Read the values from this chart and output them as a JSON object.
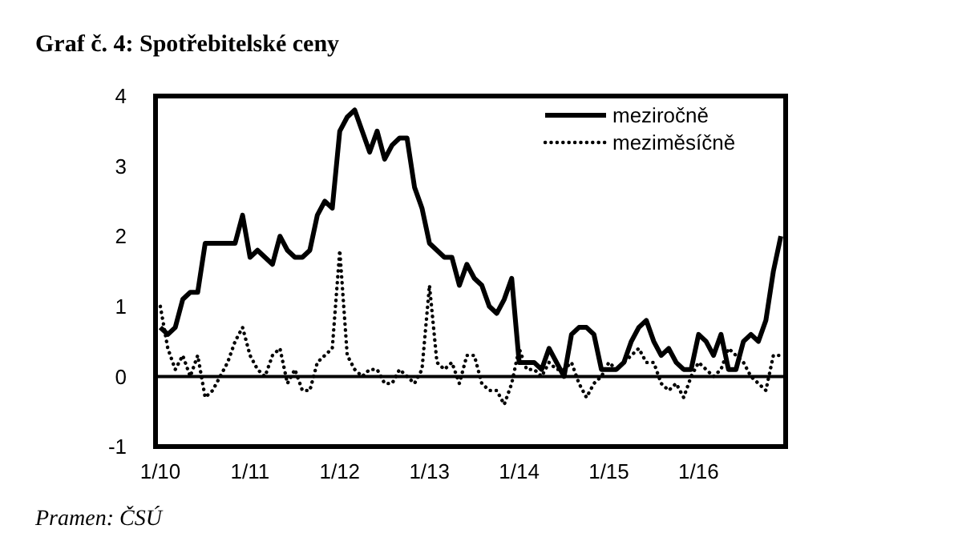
{
  "chart_data": {
    "type": "line",
    "title": "Graf č. 4: Spotřebitelské ceny",
    "annotations": [
      "Pramen: ČSÚ"
    ],
    "categories": [
      "1/10",
      null,
      null,
      null,
      null,
      null,
      null,
      null,
      null,
      null,
      null,
      null,
      "1/11",
      null,
      null,
      null,
      null,
      null,
      null,
      null,
      null,
      null,
      null,
      null,
      "1/12",
      null,
      null,
      null,
      null,
      null,
      null,
      null,
      null,
      null,
      null,
      null,
      "1/13",
      null,
      null,
      null,
      null,
      null,
      null,
      null,
      null,
      null,
      null,
      null,
      "1/14",
      null,
      null,
      null,
      null,
      null,
      null,
      null,
      null,
      null,
      null,
      null,
      "1/15",
      null,
      null,
      null,
      null,
      null,
      null,
      null,
      null,
      null,
      null,
      null,
      "1/16",
      null,
      null,
      null,
      null,
      null,
      null,
      null,
      null,
      null,
      null,
      null
    ],
    "series": [
      {
        "name": "meziročně",
        "color": "#000000",
        "line_style": "solid",
        "values": [
          0.7,
          0.6,
          0.7,
          1.1,
          1.2,
          1.2,
          1.9,
          1.9,
          1.9,
          1.9,
          1.9,
          2.3,
          1.7,
          1.8,
          1.7,
          1.6,
          2.0,
          1.8,
          1.7,
          1.7,
          1.8,
          2.3,
          2.5,
          2.4,
          3.5,
          3.7,
          3.8,
          3.5,
          3.2,
          3.5,
          3.1,
          3.3,
          3.4,
          3.4,
          2.7,
          2.4,
          1.9,
          1.8,
          1.7,
          1.7,
          1.3,
          1.6,
          1.4,
          1.3,
          1.0,
          0.9,
          1.1,
          1.4,
          0.2,
          0.2,
          0.2,
          0.1,
          0.4,
          0.2,
          0.0,
          0.6,
          0.7,
          0.7,
          0.6,
          0.1,
          0.1,
          0.1,
          0.2,
          0.5,
          0.7,
          0.8,
          0.5,
          0.3,
          0.4,
          0.2,
          0.1,
          0.1,
          0.6,
          0.5,
          0.3,
          0.6,
          0.1,
          0.1,
          0.5,
          0.6,
          0.5,
          0.8,
          1.5,
          2.0
        ]
      },
      {
        "name": "meziměsíčně",
        "color": "#000000",
        "line_style": "dotted",
        "values": [
          1.0,
          0.4,
          0.1,
          0.3,
          0.0,
          0.3,
          -0.3,
          -0.2,
          0.0,
          0.2,
          0.5,
          0.7,
          0.3,
          0.1,
          0.0,
          0.3,
          0.4,
          -0.1,
          0.1,
          -0.2,
          -0.2,
          0.2,
          0.3,
          0.4,
          1.8,
          0.3,
          0.1,
          0.0,
          0.1,
          0.1,
          -0.1,
          -0.1,
          0.1,
          0.0,
          -0.1,
          0.1,
          1.3,
          0.2,
          0.1,
          0.2,
          -0.1,
          0.3,
          0.3,
          -0.1,
          -0.2,
          -0.2,
          -0.4,
          -0.1,
          0.4,
          0.1,
          0.1,
          0.0,
          0.2,
          0.1,
          0.1,
          0.2,
          -0.1,
          -0.3,
          -0.1,
          0.0,
          0.2,
          0.1,
          0.2,
          0.3,
          0.4,
          0.2,
          0.2,
          -0.1,
          -0.2,
          -0.1,
          -0.3,
          0.0,
          0.2,
          0.1,
          0.0,
          0.1,
          0.4,
          0.3,
          0.2,
          0.0,
          -0.1,
          -0.2,
          0.3,
          0.3
        ]
      }
    ],
    "ylim": [
      -1,
      4
    ],
    "yticks": [
      -1,
      0,
      1,
      2,
      3,
      4
    ],
    "ref_lines": [
      {
        "axis": "y",
        "value": 0,
        "color": "#000000"
      }
    ],
    "legend": "top right"
  }
}
